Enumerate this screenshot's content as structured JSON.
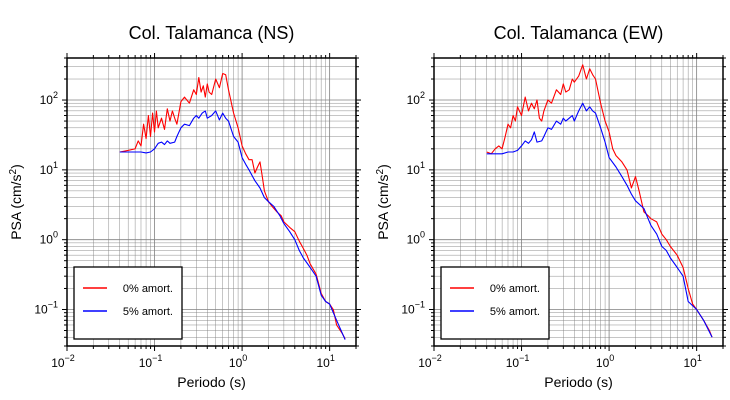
{
  "chart_data": [
    {
      "type": "line",
      "title": "Col. Talamanca (NS)",
      "xlabel": "Periodo (s)",
      "ylabel": "PSA (cm/s²)",
      "x_scale": "log",
      "y_scale": "log",
      "xlim": [
        0.01,
        20
      ],
      "ylim": [
        0.03,
        400
      ],
      "x_ticks": [
        0.01,
        0.1,
        1,
        10
      ],
      "x_tick_labels": [
        [
          "10",
          "−2"
        ],
        [
          "10",
          "−1"
        ],
        [
          "10",
          "0"
        ],
        [
          "10",
          "1"
        ]
      ],
      "y_ticks": [
        0.1,
        1,
        10,
        100
      ],
      "y_tick_labels": [
        [
          "10",
          "−1"
        ],
        [
          "10",
          "0"
        ],
        [
          "10",
          "1"
        ],
        [
          "10",
          "2"
        ]
      ],
      "grid": true,
      "legend_position": "bottom-left",
      "series": [
        {
          "name": "0% amort.",
          "color": "#ff0000",
          "points": [
            [
              0.04,
              18
            ],
            [
              0.05,
              19
            ],
            [
              0.06,
              20
            ],
            [
              0.065,
              26
            ],
            [
              0.07,
              22
            ],
            [
              0.075,
              45
            ],
            [
              0.08,
              28
            ],
            [
              0.085,
              60
            ],
            [
              0.09,
              30
            ],
            [
              0.095,
              65
            ],
            [
              0.1,
              35
            ],
            [
              0.105,
              70
            ],
            [
              0.11,
              40
            ],
            [
              0.12,
              55
            ],
            [
              0.13,
              38
            ],
            [
              0.14,
              75
            ],
            [
              0.15,
              50
            ],
            [
              0.16,
              70
            ],
            [
              0.17,
              55
            ],
            [
              0.18,
              45
            ],
            [
              0.2,
              95
            ],
            [
              0.22,
              110
            ],
            [
              0.25,
              90
            ],
            [
              0.28,
              140
            ],
            [
              0.3,
              120
            ],
            [
              0.32,
              210
            ],
            [
              0.34,
              130
            ],
            [
              0.36,
              160
            ],
            [
              0.38,
              110
            ],
            [
              0.4,
              170
            ],
            [
              0.42,
              130
            ],
            [
              0.45,
              120
            ],
            [
              0.5,
              200
            ],
            [
              0.55,
              150
            ],
            [
              0.6,
              240
            ],
            [
              0.65,
              230
            ],
            [
              0.7,
              140
            ],
            [
              0.8,
              65
            ],
            [
              0.9,
              40
            ],
            [
              1.0,
              22
            ],
            [
              1.1,
              17
            ],
            [
              1.2,
              14
            ],
            [
              1.3,
              14
            ],
            [
              1.4,
              9
            ],
            [
              1.5,
              11
            ],
            [
              1.6,
              13
            ],
            [
              1.7,
              8
            ],
            [
              1.8,
              5
            ],
            [
              2.0,
              3.5
            ],
            [
              2.2,
              3
            ],
            [
              2.5,
              2.5
            ],
            [
              2.8,
              2.2
            ],
            [
              3.0,
              1.8
            ],
            [
              3.5,
              1.5
            ],
            [
              4.0,
              1.3
            ],
            [
              4.5,
              0.95
            ],
            [
              5.0,
              0.75
            ],
            [
              5.5,
              0.6
            ],
            [
              6.0,
              0.45
            ],
            [
              7.0,
              0.32
            ],
            [
              8.0,
              0.17
            ],
            [
              9.0,
              0.13
            ],
            [
              10,
              0.12
            ],
            [
              11,
              0.1
            ],
            [
              12,
              0.06
            ],
            [
              14,
              0.045
            ],
            [
              15,
              0.038
            ]
          ]
        },
        {
          "name": "5% amort.",
          "color": "#0000ff",
          "points": [
            [
              0.04,
              18
            ],
            [
              0.05,
              18
            ],
            [
              0.06,
              18
            ],
            [
              0.07,
              18
            ],
            [
              0.08,
              17.5
            ],
            [
              0.09,
              18
            ],
            [
              0.1,
              20
            ],
            [
              0.11,
              24
            ],
            [
              0.12,
              25
            ],
            [
              0.13,
              23
            ],
            [
              0.14,
              26
            ],
            [
              0.15,
              24
            ],
            [
              0.17,
              25
            ],
            [
              0.18,
              30
            ],
            [
              0.2,
              40
            ],
            [
              0.22,
              45
            ],
            [
              0.25,
              43
            ],
            [
              0.28,
              55
            ],
            [
              0.3,
              60
            ],
            [
              0.32,
              55
            ],
            [
              0.35,
              65
            ],
            [
              0.38,
              70
            ],
            [
              0.4,
              55
            ],
            [
              0.45,
              60
            ],
            [
              0.5,
              70
            ],
            [
              0.55,
              52
            ],
            [
              0.6,
              65
            ],
            [
              0.65,
              55
            ],
            [
              0.7,
              50
            ],
            [
              0.8,
              30
            ],
            [
              0.9,
              25
            ],
            [
              1.0,
              15
            ],
            [
              1.1,
              12
            ],
            [
              1.2,
              10
            ],
            [
              1.4,
              7
            ],
            [
              1.6,
              5.5
            ],
            [
              1.8,
              4
            ],
            [
              2.0,
              3.5
            ],
            [
              2.3,
              3
            ],
            [
              2.7,
              2.2
            ],
            [
              3.0,
              1.7
            ],
            [
              3.5,
              1.3
            ],
            [
              4.0,
              1.0
            ],
            [
              4.5,
              0.7
            ],
            [
              5.0,
              0.55
            ],
            [
              6.0,
              0.4
            ],
            [
              7.0,
              0.3
            ],
            [
              8.0,
              0.16
            ],
            [
              9.0,
              0.13
            ],
            [
              10,
              0.12
            ],
            [
              12,
              0.07
            ],
            [
              15,
              0.037
            ]
          ]
        }
      ]
    },
    {
      "type": "line",
      "title": "Col. Talamanca (EW)",
      "xlabel": "Periodo (s)",
      "ylabel": "PSA (cm/s²)",
      "x_scale": "log",
      "y_scale": "log",
      "xlim": [
        0.01,
        20
      ],
      "ylim": [
        0.03,
        400
      ],
      "x_ticks": [
        0.01,
        0.1,
        1,
        10
      ],
      "x_tick_labels": [
        [
          "10",
          "−2"
        ],
        [
          "10",
          "−1"
        ],
        [
          "10",
          "0"
        ],
        [
          "10",
          "1"
        ]
      ],
      "y_ticks": [
        0.1,
        1,
        10,
        100
      ],
      "y_tick_labels": [
        [
          "10",
          "−1"
        ],
        [
          "10",
          "0"
        ],
        [
          "10",
          "1"
        ],
        [
          "10",
          "2"
        ]
      ],
      "grid": true,
      "legend_position": "bottom-left",
      "series": [
        {
          "name": "0% amort.",
          "color": "#ff0000",
          "points": [
            [
              0.04,
              18
            ],
            [
              0.045,
              17
            ],
            [
              0.05,
              20
            ],
            [
              0.055,
              22
            ],
            [
              0.06,
              20
            ],
            [
              0.065,
              30
            ],
            [
              0.07,
              45
            ],
            [
              0.075,
              40
            ],
            [
              0.08,
              60
            ],
            [
              0.085,
              50
            ],
            [
              0.09,
              80
            ],
            [
              0.1,
              60
            ],
            [
              0.11,
              110
            ],
            [
              0.12,
              70
            ],
            [
              0.13,
              90
            ],
            [
              0.14,
              75
            ],
            [
              0.15,
              100
            ],
            [
              0.16,
              55
            ],
            [
              0.17,
              50
            ],
            [
              0.18,
              70
            ],
            [
              0.2,
              100
            ],
            [
              0.22,
              90
            ],
            [
              0.25,
              140
            ],
            [
              0.28,
              120
            ],
            [
              0.3,
              170
            ],
            [
              0.32,
              130
            ],
            [
              0.35,
              140
            ],
            [
              0.38,
              200
            ],
            [
              0.4,
              180
            ],
            [
              0.45,
              220
            ],
            [
              0.5,
              320
            ],
            [
              0.55,
              200
            ],
            [
              0.6,
              280
            ],
            [
              0.65,
              230
            ],
            [
              0.7,
              200
            ],
            [
              0.8,
              90
            ],
            [
              0.9,
              50
            ],
            [
              1.0,
              35
            ],
            [
              1.1,
              20
            ],
            [
              1.2,
              16
            ],
            [
              1.4,
              13
            ],
            [
              1.6,
              10
            ],
            [
              1.8,
              5.5
            ],
            [
              2.0,
              8
            ],
            [
              2.2,
              5
            ],
            [
              2.5,
              2.5
            ],
            [
              2.8,
              2.2
            ],
            [
              3.0,
              2.0
            ],
            [
              3.5,
              1.8
            ],
            [
              4.0,
              1.2
            ],
            [
              4.5,
              1.0
            ],
            [
              5.0,
              0.8
            ],
            [
              6.0,
              0.6
            ],
            [
              7.0,
              0.4
            ],
            [
              8.0,
              0.2
            ],
            [
              9.0,
              0.12
            ],
            [
              10,
              0.1
            ],
            [
              12,
              0.07
            ],
            [
              14,
              0.05
            ],
            [
              15,
              0.04
            ]
          ]
        },
        {
          "name": "5% amort.",
          "color": "#0000ff",
          "points": [
            [
              0.04,
              17
            ],
            [
              0.05,
              17
            ],
            [
              0.06,
              17
            ],
            [
              0.07,
              18
            ],
            [
              0.08,
              18
            ],
            [
              0.09,
              19
            ],
            [
              0.1,
              22
            ],
            [
              0.11,
              26
            ],
            [
              0.12,
              24
            ],
            [
              0.13,
              27
            ],
            [
              0.14,
              35
            ],
            [
              0.15,
              25
            ],
            [
              0.17,
              26
            ],
            [
              0.18,
              30
            ],
            [
              0.2,
              40
            ],
            [
              0.22,
              38
            ],
            [
              0.25,
              50
            ],
            [
              0.28,
              45
            ],
            [
              0.3,
              55
            ],
            [
              0.32,
              50
            ],
            [
              0.35,
              55
            ],
            [
              0.38,
              60
            ],
            [
              0.4,
              50
            ],
            [
              0.45,
              70
            ],
            [
              0.5,
              90
            ],
            [
              0.55,
              70
            ],
            [
              0.6,
              80
            ],
            [
              0.65,
              70
            ],
            [
              0.7,
              65
            ],
            [
              0.8,
              40
            ],
            [
              0.9,
              25
            ],
            [
              1.0,
              15
            ],
            [
              1.2,
              11
            ],
            [
              1.4,
              8
            ],
            [
              1.6,
              6
            ],
            [
              1.8,
              4.5
            ],
            [
              2.0,
              3.6
            ],
            [
              2.5,
              2.8
            ],
            [
              3.0,
              1.6
            ],
            [
              3.5,
              1.2
            ],
            [
              4.0,
              0.8
            ],
            [
              4.5,
              0.7
            ],
            [
              5.0,
              0.55
            ],
            [
              6.0,
              0.4
            ],
            [
              7.0,
              0.3
            ],
            [
              8.0,
              0.13
            ],
            [
              10,
              0.1
            ],
            [
              12,
              0.07
            ],
            [
              15,
              0.04
            ]
          ]
        }
      ]
    }
  ]
}
